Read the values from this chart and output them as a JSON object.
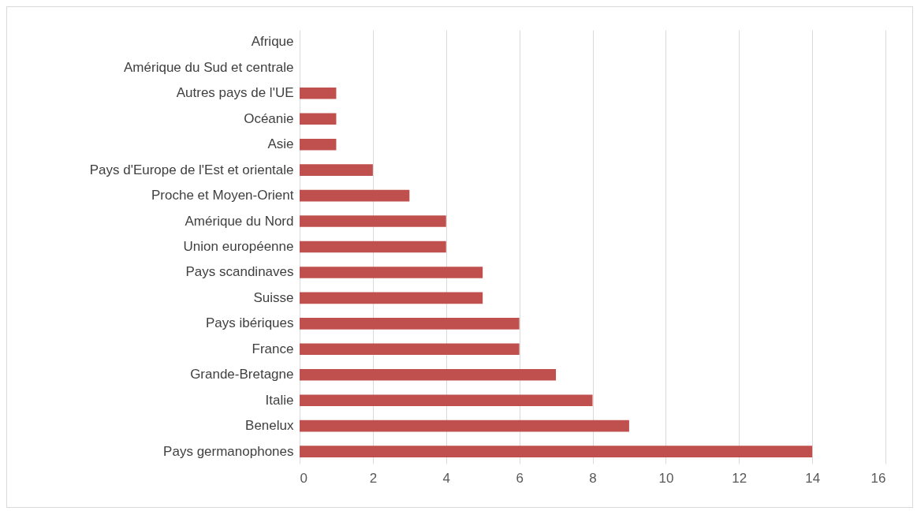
{
  "chart_data": {
    "type": "bar",
    "orientation": "horizontal",
    "categories": [
      "Afrique",
      "Amérique du Sud et centrale",
      "Autres pays de l'UE",
      "Océanie",
      "Asie",
      "Pays d'Europe de l'Est et orientale",
      "Proche et Moyen-Orient",
      "Amérique du Nord",
      "Union européenne",
      "Pays scandinaves",
      "Suisse",
      "Pays ibériques",
      "France",
      "Grande-Bretagne",
      "Italie",
      "Benelux",
      "Pays germanophones"
    ],
    "values": [
      0,
      0,
      1,
      1,
      1,
      2,
      3,
      4,
      4,
      5,
      5,
      6,
      6,
      7,
      8,
      9,
      14
    ],
    "color": "#c0504d",
    "xlim": [
      0,
      16
    ],
    "xticks": [
      0,
      2,
      4,
      6,
      8,
      10,
      12,
      14,
      16
    ],
    "grid": "x"
  }
}
